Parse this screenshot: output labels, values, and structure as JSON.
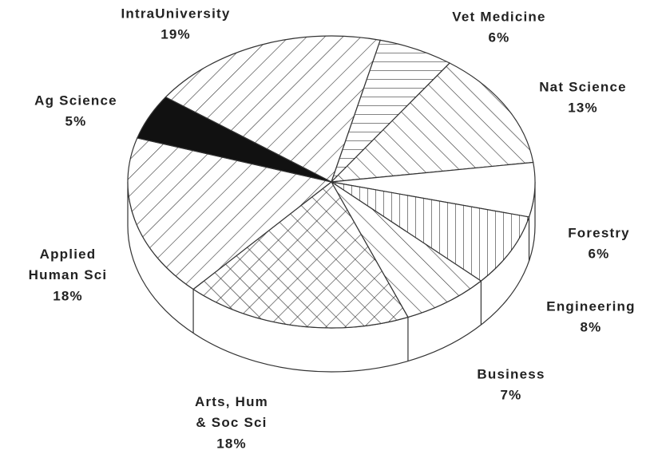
{
  "chart_data": {
    "type": "pie3d",
    "categories": [
      "IntraUniversity",
      "Vet Medicine",
      "Nat Science",
      "Forestry",
      "Engineering",
      "Business",
      "Arts, Hum & Soc Sci",
      "Applied Human Sci",
      "Ag Science"
    ],
    "values": [
      19,
      6,
      13,
      6,
      8,
      7,
      18,
      18,
      5
    ],
    "value_labels": [
      "19%",
      "6%",
      "13%",
      "6%",
      "8%",
      "7%",
      "18%",
      "18%",
      "5%"
    ],
    "patterns": [
      "forward-hatch",
      "horizontal-hatch",
      "backward-hatch",
      "none",
      "vertical-hatch",
      "backward-hatch",
      "cross-hatch",
      "forward-hatch",
      "solid"
    ]
  }
}
